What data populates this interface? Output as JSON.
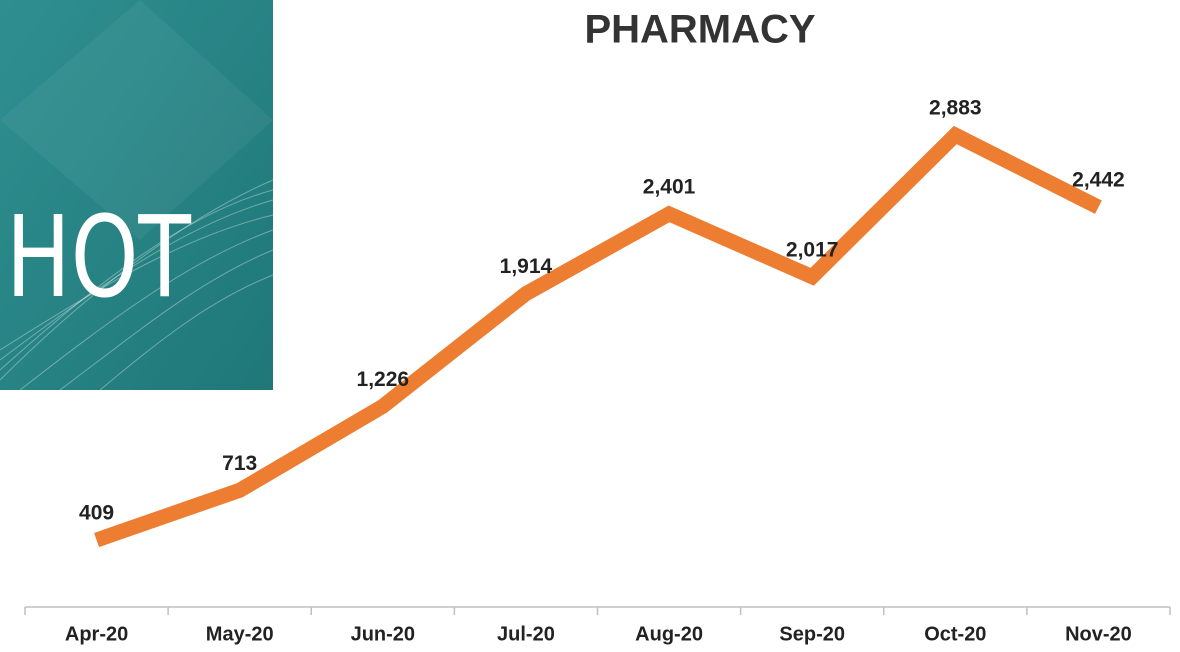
{
  "badge": "HOT",
  "chart_data": {
    "type": "line",
    "title": "PHARMACY",
    "categories": [
      "Apr-20",
      "May-20",
      "Jun-20",
      "Jul-20",
      "Aug-20",
      "Sep-20",
      "Oct-20",
      "Nov-20"
    ],
    "values": [
      409,
      713,
      1226,
      1914,
      2401,
      2017,
      2883,
      2442
    ],
    "value_labels": [
      "409",
      "713",
      "1,226",
      "1,914",
      "2,401",
      "2,017",
      "2,883",
      "2,442"
    ],
    "color": "#ed7d31"
  }
}
